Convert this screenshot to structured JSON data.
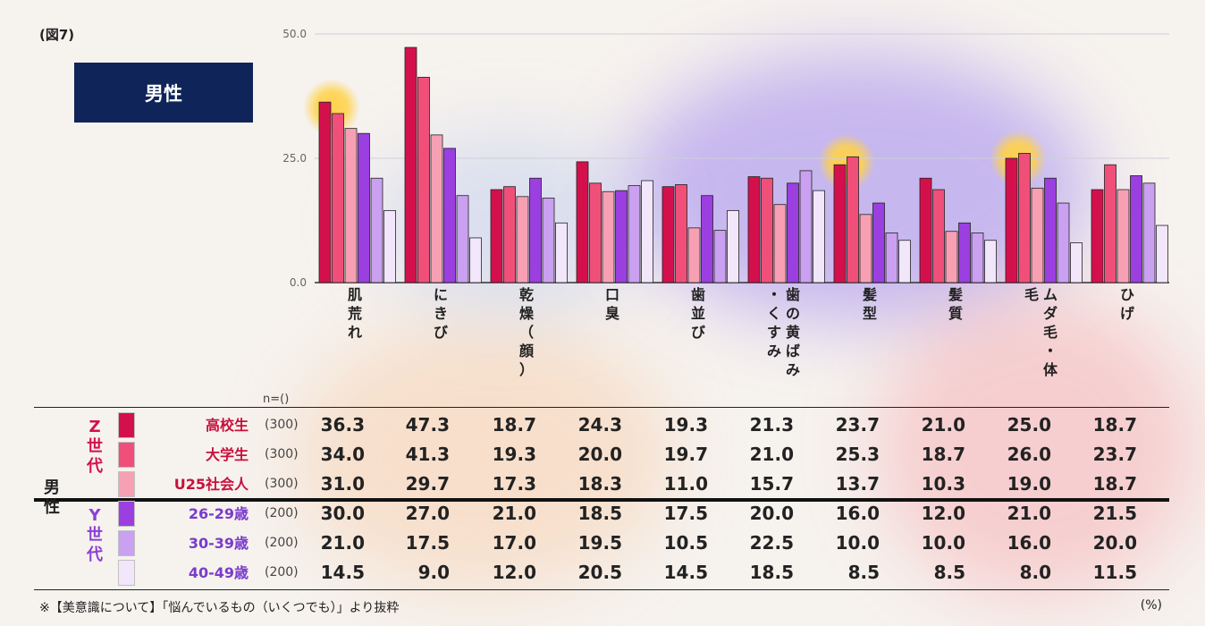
{
  "figure_label": "(図7)",
  "gender_box": "男性",
  "n_header": "n=()",
  "footnote": "※【美意識について】「悩んでいるもの（いくつでも）」より抜粋",
  "unit": "(%)",
  "colors": {
    "navy": "#0f2459",
    "highlight": "#ffd24a",
    "series": [
      "#d4104c",
      "#f04f79",
      "#f7a0b4",
      "#9b3fe0",
      "#caa0f0",
      "#f2e6fb"
    ]
  },
  "table": {
    "side_label": "男性",
    "generations": [
      {
        "label": "Z世代",
        "color": "#d4104c"
      },
      {
        "label": "Y世代",
        "color": "#8b3fd6"
      }
    ],
    "rows": [
      {
        "label": "高校生",
        "n": "(300)",
        "values": [
          "36.3",
          "47.3",
          "18.7",
          "24.3",
          "19.3",
          "21.3",
          "23.7",
          "21.0",
          "25.0",
          "18.7"
        ]
      },
      {
        "label": "大学生",
        "n": "(300)",
        "values": [
          "34.0",
          "41.3",
          "19.3",
          "20.0",
          "19.7",
          "21.0",
          "25.3",
          "18.7",
          "26.0",
          "23.7"
        ]
      },
      {
        "label": "U25社会人",
        "n": "(300)",
        "values": [
          "31.0",
          "29.7",
          "17.3",
          "18.3",
          "11.0",
          "15.7",
          "13.7",
          "10.3",
          "19.0",
          "18.7"
        ]
      },
      {
        "label": "26-29歳",
        "n": "(200)",
        "values": [
          "30.0",
          "27.0",
          "21.0",
          "18.5",
          "17.5",
          "20.0",
          "16.0",
          "12.0",
          "21.0",
          "21.5"
        ]
      },
      {
        "label": "30-39歳",
        "n": "(200)",
        "values": [
          "21.0",
          "17.5",
          "17.0",
          "19.5",
          "10.5",
          "22.5",
          "10.0",
          "10.0",
          "16.0",
          "20.0"
        ]
      },
      {
        "label": "40-49歳",
        "n": "(200)",
        "values": [
          "14.5",
          "9.0",
          "12.0",
          "20.5",
          "14.5",
          "18.5",
          "8.5",
          "8.5",
          "8.0",
          "11.5"
        ]
      }
    ]
  },
  "chart_data": {
    "type": "bar",
    "yticks": [
      "0.0",
      "25.0",
      "50.0"
    ],
    "ylim": [
      0,
      50
    ],
    "grid": true,
    "categories": [
      [
        "肌",
        "荒",
        "れ"
      ],
      [
        "に",
        "き",
        "び"
      ],
      [
        "乾",
        "燥",
        "（",
        "顔",
        "）"
      ],
      [
        "口",
        "臭"
      ],
      [
        "歯",
        "並",
        "び"
      ],
      [
        "歯",
        "の",
        "黄",
        "ば",
        "み",
        "・",
        "く",
        "す",
        "み"
      ],
      [
        "髪",
        "型"
      ],
      [
        "髪",
        "質"
      ],
      [
        "ム",
        "ダ",
        "毛",
        "・",
        "体",
        "毛"
      ],
      [
        "ひ",
        "げ"
      ]
    ],
    "series": [
      {
        "name": "高校生",
        "values": [
          36.3,
          47.3,
          18.7,
          24.3,
          19.3,
          21.3,
          23.7,
          21.0,
          25.0,
          18.7
        ]
      },
      {
        "name": "大学生",
        "values": [
          34.0,
          41.3,
          19.3,
          20.0,
          19.7,
          21.0,
          25.3,
          18.7,
          26.0,
          23.7
        ]
      },
      {
        "name": "U25社会人",
        "values": [
          31.0,
          29.7,
          17.3,
          18.3,
          11.0,
          15.7,
          13.7,
          10.3,
          19.0,
          18.7
        ]
      },
      {
        "name": "26-29歳",
        "values": [
          30.0,
          27.0,
          21.0,
          18.5,
          17.5,
          20.0,
          16.0,
          12.0,
          21.0,
          21.5
        ]
      },
      {
        "name": "30-39歳",
        "values": [
          21.0,
          17.5,
          17.0,
          19.5,
          10.5,
          22.5,
          10.0,
          10.0,
          16.0,
          20.0
        ]
      },
      {
        "name": "40-49歳",
        "values": [
          14.5,
          9.0,
          12.0,
          20.5,
          14.5,
          18.5,
          8.5,
          8.5,
          8.0,
          11.5
        ]
      }
    ],
    "highlighted_categories": [
      0,
      6,
      8
    ]
  }
}
